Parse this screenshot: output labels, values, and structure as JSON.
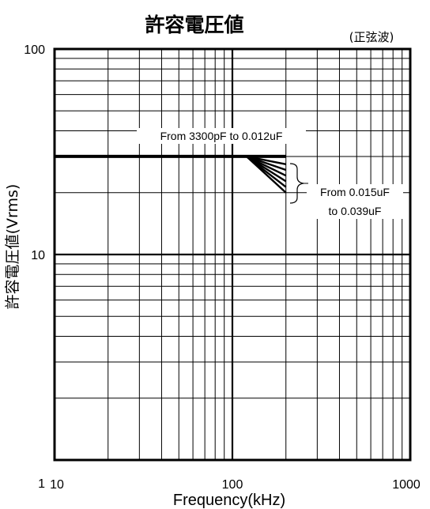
{
  "chart_data": {
    "type": "line",
    "title": "許容電圧値",
    "subtitle": "(正弦波)",
    "xlabel": "Frequency(kHz)",
    "ylabel": "許容電圧値(Vrms)",
    "x_scale": "log",
    "y_scale": "log",
    "xlim": [
      10,
      1000
    ],
    "ylim": [
      1,
      100
    ],
    "x_ticks": [
      "10",
      "100",
      "1000"
    ],
    "y_ticks": [
      "1",
      "10",
      "100"
    ],
    "grid": true,
    "series": [
      {
        "x": [
          10,
          100,
          200
        ],
        "y": [
          30,
          30,
          30
        ]
      },
      {
        "x": [
          10,
          100,
          120,
          200
        ],
        "y": [
          30,
          30,
          30,
          27.5
        ]
      },
      {
        "x": [
          10,
          100,
          120,
          200
        ],
        "y": [
          30,
          30,
          30,
          25.8
        ]
      },
      {
        "x": [
          10,
          100,
          120,
          200
        ],
        "y": [
          30,
          30,
          30,
          24.2
        ]
      },
      {
        "x": [
          10,
          100,
          120,
          200
        ],
        "y": [
          30,
          30,
          30,
          22.7
        ]
      },
      {
        "x": [
          10,
          100,
          120,
          200
        ],
        "y": [
          30,
          30,
          30,
          21.3
        ]
      },
      {
        "x": [
          10,
          100,
          120,
          200
        ],
        "y": [
          30,
          30,
          30,
          20.0
        ]
      }
    ],
    "annotations": [
      {
        "text": "From 3300pF to 0.012uF"
      },
      {
        "text": "From 0.015uF"
      },
      {
        "text": "to 0.039uF"
      }
    ]
  }
}
